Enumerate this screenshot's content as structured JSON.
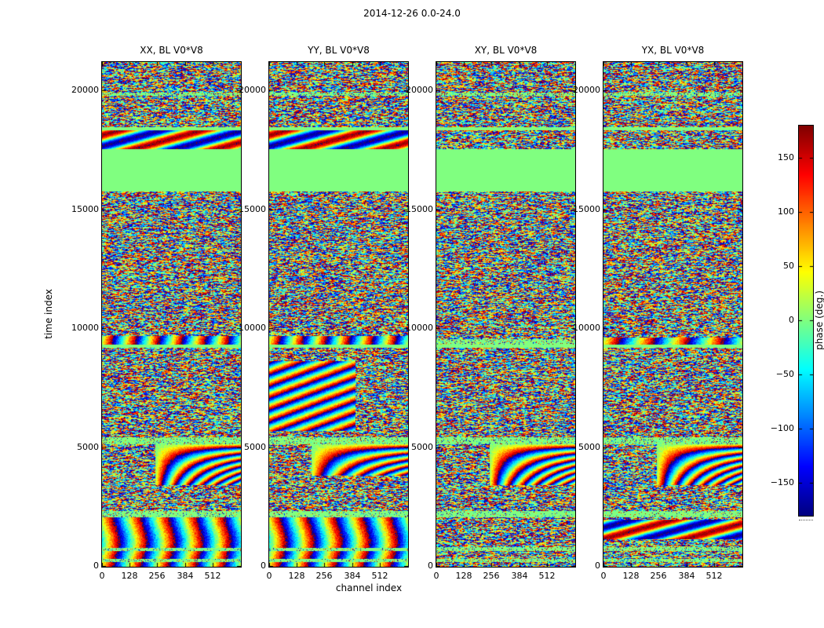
{
  "figure": {
    "title": "2014-12-26 0.0-24.0",
    "xlabel": "channel index",
    "ylabel": "time index",
    "background": "#ffffff"
  },
  "colorbar": {
    "label": "phase (deg.)",
    "min": -180,
    "max": 180,
    "ticks": [
      150,
      100,
      50,
      0,
      -50,
      -100,
      -150
    ]
  },
  "chart_data": {
    "type": "heatmap",
    "title": "2014-12-26 0.0-24.0",
    "xlabel": "channel index",
    "ylabel": "time index",
    "value_label": "phase (deg.)",
    "value_range": [
      -180,
      180
    ],
    "colormap": "jet",
    "flat_phase_color": "#80ff80",
    "x_range": [
      0,
      640
    ],
    "x_ticks": [
      0,
      128,
      256,
      384,
      512
    ],
    "y_range": [
      0,
      21200
    ],
    "y_ticks": [
      0,
      5000,
      10000,
      15000,
      20000
    ],
    "colorbar_ticks": [
      -150,
      -100,
      -50,
      0,
      50,
      100,
      150
    ],
    "panels": [
      {
        "key": "xx",
        "title": "XX, BL V0*V8",
        "features": [
          {
            "t0": 0,
            "t1": 21200,
            "type": "noise"
          },
          {
            "t0": 0,
            "t1": 2060,
            "type": "xramp",
            "cycles": 5
          },
          {
            "t0": 190,
            "t1": 300,
            "type": "speckle",
            "density": 0.2
          },
          {
            "t0": 650,
            "t1": 780,
            "type": "speckle",
            "density": 0.2
          },
          {
            "t0": 2080,
            "t1": 2320,
            "type": "speckle",
            "density": 0.18
          },
          {
            "t0": 3420,
            "t1": 5150,
            "type": "fan",
            "c0": 0.38,
            "k": 0.4
          },
          {
            "t0": 5150,
            "t1": 5440,
            "type": "speckle",
            "density": 0.22
          },
          {
            "t0": 9210,
            "t1": 9330,
            "type": "flat"
          },
          {
            "t0": 9330,
            "t1": 9700,
            "type": "xramp",
            "cycles": 6
          },
          {
            "t0": 15760,
            "t1": 17560,
            "type": "flat"
          },
          {
            "t0": 17560,
            "t1": 18340,
            "type": "smooth"
          },
          {
            "t0": 18340,
            "t1": 18480,
            "type": "flat"
          },
          {
            "t0": 19790,
            "t1": 19930,
            "type": "speckle",
            "density": 0.3
          }
        ]
      },
      {
        "key": "yy",
        "title": "YY, BL V0*V8",
        "features": [
          {
            "t0": 0,
            "t1": 21200,
            "type": "noise"
          },
          {
            "t0": 0,
            "t1": 2060,
            "type": "xramp",
            "cycles": 5
          },
          {
            "t0": 190,
            "t1": 300,
            "type": "speckle",
            "density": 0.2
          },
          {
            "t0": 650,
            "t1": 780,
            "type": "speckle",
            "density": 0.2
          },
          {
            "t0": 2080,
            "t1": 2320,
            "type": "speckle",
            "density": 0.18
          },
          {
            "t0": 3800,
            "t1": 5150,
            "type": "fan",
            "c0": 0.3,
            "k": 0.35
          },
          {
            "t0": 5150,
            "t1": 5440,
            "type": "speckle",
            "density": 0.22
          },
          {
            "t0": 5700,
            "t1": 8620,
            "type": "diag",
            "cmax": 0.62
          },
          {
            "t0": 9210,
            "t1": 9330,
            "type": "flat"
          },
          {
            "t0": 9330,
            "t1": 9700,
            "type": "xramp",
            "cycles": 6
          },
          {
            "t0": 15760,
            "t1": 17560,
            "type": "flat"
          },
          {
            "t0": 17560,
            "t1": 18340,
            "type": "smooth"
          },
          {
            "t0": 18340,
            "t1": 18480,
            "type": "flat"
          },
          {
            "t0": 19790,
            "t1": 19930,
            "type": "speckle",
            "density": 0.3
          }
        ]
      },
      {
        "key": "xy",
        "title": "XY, BL V0*V8",
        "features": [
          {
            "t0": 0,
            "t1": 21200,
            "type": "noise"
          },
          {
            "t0": 190,
            "t1": 300,
            "type": "speckle",
            "density": 0.25
          },
          {
            "t0": 650,
            "t1": 800,
            "type": "speckle",
            "density": 0.25
          },
          {
            "t0": 2080,
            "t1": 2320,
            "type": "speckle",
            "density": 0.18
          },
          {
            "t0": 3420,
            "t1": 5150,
            "type": "fan",
            "c0": 0.38,
            "k": 0.4
          },
          {
            "t0": 5150,
            "t1": 5440,
            "type": "speckle",
            "density": 0.22
          },
          {
            "t0": 9210,
            "t1": 9330,
            "type": "flat"
          },
          {
            "t0": 9330,
            "t1": 9560,
            "type": "speckle",
            "density": 0.3
          },
          {
            "t0": 15760,
            "t1": 17560,
            "type": "flat"
          },
          {
            "t0": 18340,
            "t1": 18480,
            "type": "flat"
          },
          {
            "t0": 19790,
            "t1": 19930,
            "type": "speckle",
            "density": 0.3
          }
        ]
      },
      {
        "key": "yx",
        "title": "YX, BL V0*V8",
        "features": [
          {
            "t0": 0,
            "t1": 21200,
            "type": "noise"
          },
          {
            "t0": 190,
            "t1": 300,
            "type": "speckle",
            "density": 0.25
          },
          {
            "t0": 650,
            "t1": 800,
            "type": "speckle",
            "density": 0.25
          },
          {
            "t0": 1150,
            "t1": 1980,
            "type": "smooth"
          },
          {
            "t0": 2080,
            "t1": 2320,
            "type": "speckle",
            "density": 0.18
          },
          {
            "t0": 3420,
            "t1": 5150,
            "type": "fan",
            "c0": 0.38,
            "k": 0.4
          },
          {
            "t0": 5150,
            "t1": 5440,
            "type": "speckle",
            "density": 0.22
          },
          {
            "t0": 9210,
            "t1": 9330,
            "type": "flat"
          },
          {
            "t0": 9330,
            "t1": 9620,
            "type": "xramp",
            "cycles": 4
          },
          {
            "t0": 15760,
            "t1": 17560,
            "type": "flat"
          },
          {
            "t0": 18340,
            "t1": 18480,
            "type": "flat"
          },
          {
            "t0": 19790,
            "t1": 19930,
            "type": "speckle",
            "density": 0.3
          }
        ]
      }
    ]
  }
}
